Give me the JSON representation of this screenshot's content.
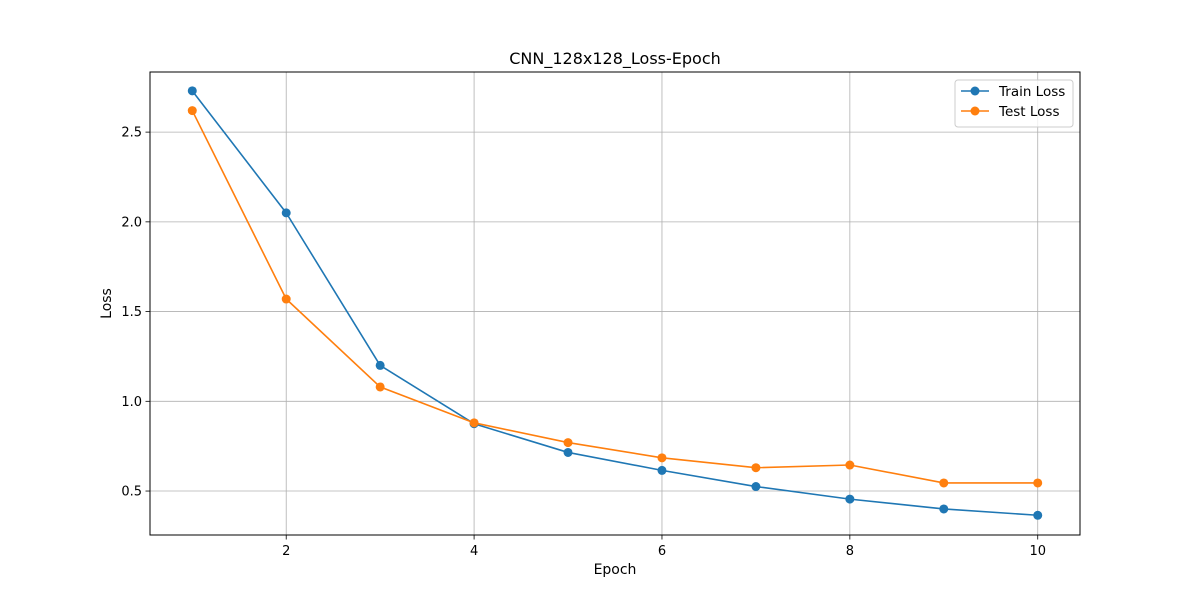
{
  "chart_data": {
    "type": "line",
    "title": "CNN_128x128_Loss-Epoch",
    "xlabel": "Epoch",
    "ylabel": "Loss",
    "x": [
      1,
      2,
      3,
      4,
      5,
      6,
      7,
      8,
      9,
      10
    ],
    "xlim": [
      0.55,
      10.45
    ],
    "ylim": [
      0.255,
      2.835
    ],
    "xticks": [
      2,
      4,
      6,
      8,
      10
    ],
    "yticks": [
      0.5,
      1.0,
      1.5,
      2.0,
      2.5
    ],
    "xtick_labels": [
      "2",
      "4",
      "6",
      "8",
      "10"
    ],
    "ytick_labels": [
      "0.5",
      "1.0",
      "1.5",
      "2.0",
      "2.5"
    ],
    "grid": true,
    "legend_position": "top-right",
    "series": [
      {
        "name": "Train Loss",
        "color": "#1f77b4",
        "marker": "circle",
        "values": [
          2.73,
          2.05,
          1.2,
          0.875,
          0.715,
          0.615,
          0.525,
          0.455,
          0.4,
          0.365
        ]
      },
      {
        "name": "Test Loss",
        "color": "#ff7f0e",
        "marker": "circle",
        "values": [
          2.62,
          1.57,
          1.08,
          0.88,
          0.77,
          0.685,
          0.63,
          0.645,
          0.545,
          0.545
        ]
      }
    ]
  }
}
